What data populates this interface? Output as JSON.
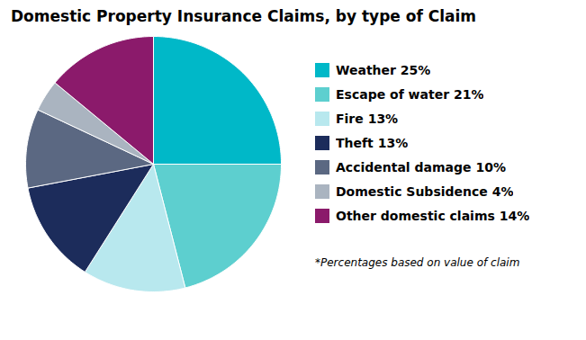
{
  "chart_data": {
    "type": "pie",
    "title": "Domestic Property Insurance Claims, by type of Claim",
    "footnote": "*Percentages based on value of claim",
    "categories": [
      "Weather 25%",
      "Escape of water 21%",
      "Fire 13%",
      "Theft 13%",
      "Accidental damage 10%",
      "Domestic Subsidence 4%",
      "Other domestic claims 14%"
    ],
    "values": [
      25,
      21,
      13,
      13,
      10,
      4,
      14
    ],
    "colors": [
      "#00b8c8",
      "#5dcfcf",
      "#b8e8ee",
      "#1c2c5b",
      "#5b6882",
      "#aab4c0",
      "#8b1a6b"
    ],
    "legend": "right"
  }
}
